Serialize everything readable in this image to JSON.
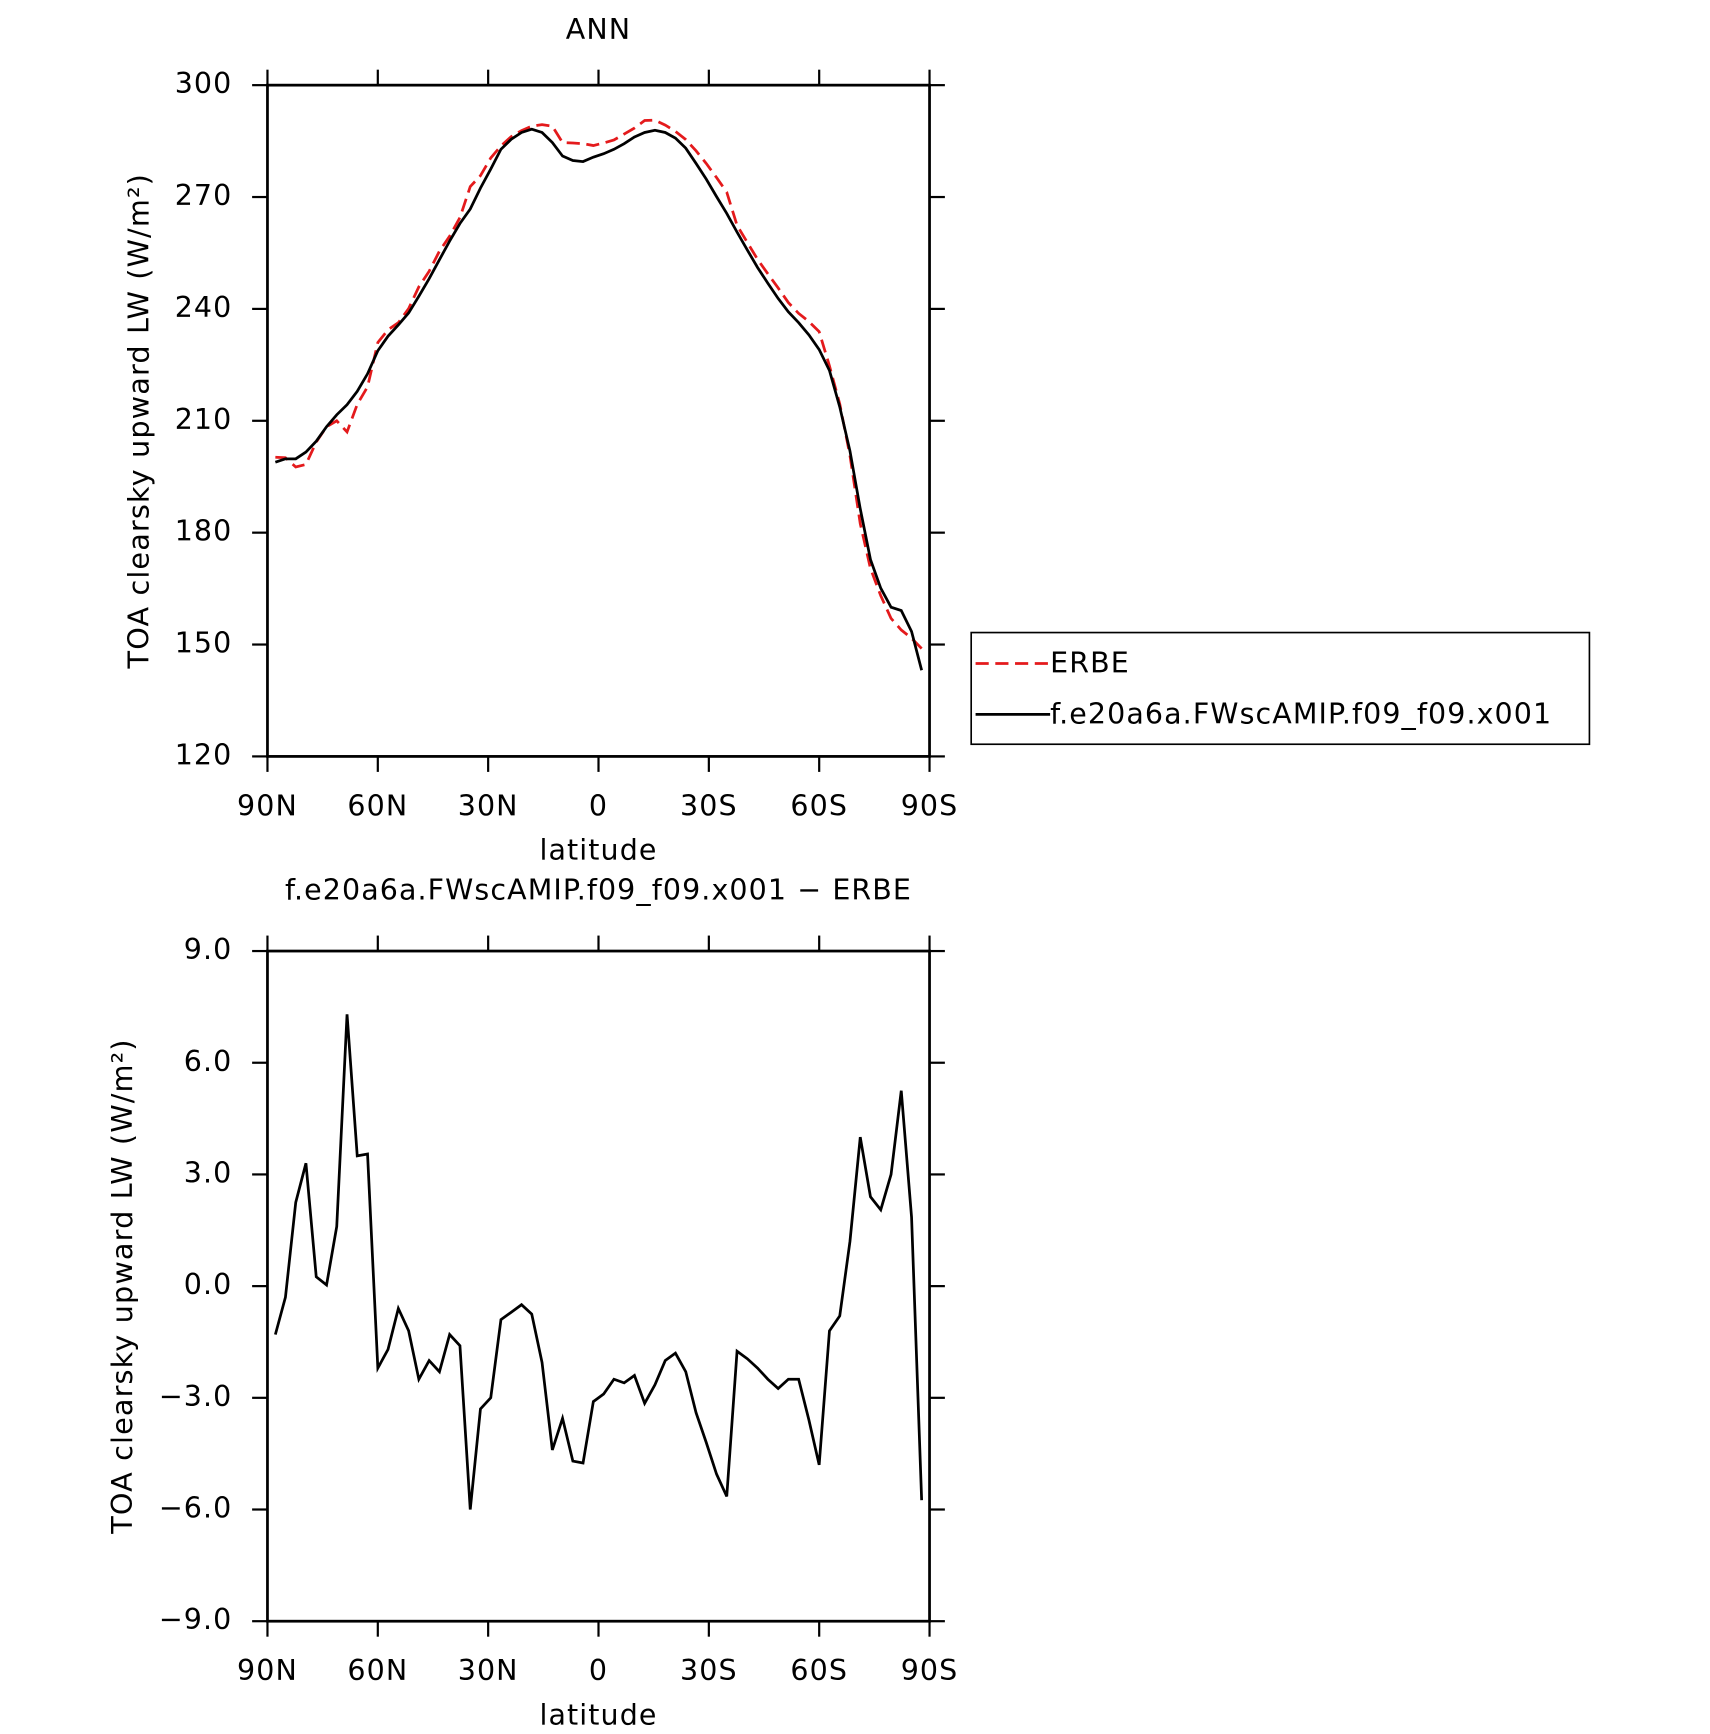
{
  "chart_data": [
    {
      "type": "line",
      "title": "ANN",
      "x_label": "latitude",
      "y_label": "TOA clearsky upward LW (W/m²)",
      "x": [
        87.86,
        85.1,
        82.31,
        79.53,
        76.74,
        73.95,
        71.16,
        68.37,
        65.58,
        62.79,
        60.0,
        57.21,
        54.42,
        51.63,
        48.84,
        46.04,
        43.25,
        40.46,
        37.67,
        34.88,
        32.09,
        29.3,
        26.51,
        23.72,
        20.93,
        18.14,
        15.35,
        12.56,
        9.77,
        6.98,
        4.19,
        1.4,
        -1.4,
        -4.19,
        -6.98,
        -9.77,
        -12.56,
        -15.35,
        -18.14,
        -20.93,
        -23.72,
        -26.51,
        -29.3,
        -32.09,
        -34.88,
        -37.67,
        -40.46,
        -43.25,
        -46.04,
        -48.84,
        -51.63,
        -54.42,
        -57.21,
        -60.0,
        -62.79,
        -65.58,
        -68.37,
        -71.16,
        -73.95,
        -76.74,
        -79.53,
        -82.31,
        -85.1,
        -87.86
      ],
      "series": [
        {
          "name": "ERBE",
          "color": "#e41a1c",
          "linestyle": "dashed",
          "values": [
            200.2,
            200.1,
            197.6,
            198.3,
            204.3,
            208.4,
            210.0,
            207.0,
            214.4,
            219.1,
            231.0,
            234.4,
            236.3,
            240.1,
            245.9,
            250.1,
            255.5,
            259.5,
            264.5,
            272.8,
            275.7,
            280.5,
            283.7,
            286.2,
            287.8,
            289.0,
            289.4,
            289.0,
            284.6,
            284.5,
            284.3,
            283.8,
            284.5,
            285.3,
            286.9,
            288.5,
            290.5,
            290.6,
            289.3,
            287.6,
            285.4,
            282.4,
            279.0,
            275.2,
            271.3,
            262.4,
            257.8,
            253.3,
            249.4,
            245.6,
            241.7,
            238.8,
            236.6,
            233.9,
            224.7,
            214.5,
            200.7,
            182.4,
            170.4,
            163.1,
            157.0,
            153.9,
            151.7,
            148.9
          ]
        },
        {
          "name": "f.e20a6a.FWscAMIP.f09_f09.x001",
          "color": "#000000",
          "linestyle": "solid",
          "values": [
            198.9,
            199.8,
            199.8,
            201.6,
            204.5,
            208.4,
            211.6,
            214.3,
            217.9,
            222.6,
            228.8,
            232.7,
            235.7,
            238.9,
            243.4,
            248.1,
            253.2,
            258.2,
            262.9,
            266.8,
            272.4,
            277.5,
            282.8,
            285.5,
            287.3,
            288.2,
            287.3,
            284.6,
            281.0,
            279.8,
            279.5,
            280.7,
            281.6,
            282.8,
            284.3,
            286.1,
            287.3,
            287.9,
            287.3,
            285.8,
            283.1,
            279.0,
            274.8,
            270.1,
            265.6,
            260.6,
            255.8,
            251.1,
            246.9,
            242.8,
            239.2,
            236.3,
            233.0,
            229.1,
            223.5,
            213.7,
            201.9,
            186.4,
            172.8,
            165.1,
            160.0,
            159.1,
            153.5,
            143.1
          ]
        }
      ],
      "xlim": [
        90,
        -90
      ],
      "xticks": [
        {
          "value": 90,
          "label": "90N"
        },
        {
          "value": 60,
          "label": "60N"
        },
        {
          "value": 30,
          "label": "30N"
        },
        0,
        {
          "value": -30,
          "label": "30S"
        },
        {
          "value": -60,
          "label": "60S"
        },
        {
          "value": -90,
          "label": "90S"
        }
      ],
      "ylim": [
        120,
        300
      ],
      "yticks": [
        120,
        150,
        180,
        210,
        240,
        270,
        300
      ],
      "grid": false,
      "legend": "right"
    },
    {
      "type": "line",
      "title": "f.e20a6a.FWscAMIP.f09_f09.x001 − ERBE",
      "x_label": "latitude",
      "y_label": "TOA clearsky upward LW (W/m²)",
      "x": [
        87.86,
        85.1,
        82.31,
        79.53,
        76.74,
        73.95,
        71.16,
        68.37,
        65.58,
        62.79,
        60.0,
        57.21,
        54.42,
        51.63,
        48.84,
        46.04,
        43.25,
        40.46,
        37.67,
        34.88,
        32.09,
        29.3,
        26.51,
        23.72,
        20.93,
        18.14,
        15.35,
        12.56,
        9.77,
        6.98,
        4.19,
        1.4,
        -1.4,
        -4.19,
        -6.98,
        -9.77,
        -12.56,
        -15.35,
        -18.14,
        -20.93,
        -23.72,
        -26.51,
        -29.3,
        -32.09,
        -34.88,
        -37.67,
        -40.46,
        -43.25,
        -46.04,
        -48.84,
        -51.63,
        -54.42,
        -57.21,
        -60.0,
        -62.79,
        -65.58,
        -68.37,
        -71.16,
        -73.95,
        -76.74,
        -79.53,
        -82.31,
        -85.1,
        -87.86
      ],
      "values": [
        -1.3,
        -0.3,
        2.25,
        3.3,
        0.25,
        0.03,
        1.6,
        7.3,
        3.5,
        3.55,
        -2.2,
        -1.7,
        -0.6,
        -1.2,
        -2.5,
        -2.0,
        -2.3,
        -1.3,
        -1.6,
        -6.0,
        -3.3,
        -3.0,
        -0.9,
        -0.7,
        -0.5,
        -0.75,
        -2.05,
        -4.4,
        -3.55,
        -4.7,
        -4.75,
        -3.1,
        -2.9,
        -2.5,
        -2.6,
        -2.4,
        -3.15,
        -2.65,
        -2.0,
        -1.8,
        -2.3,
        -3.4,
        -4.2,
        -5.05,
        -5.65,
        -1.75,
        -1.95,
        -2.2,
        -2.5,
        -2.75,
        -2.5,
        -2.5,
        -3.6,
        -4.8,
        -1.2,
        -0.8,
        1.2,
        4.0,
        2.4,
        2.05,
        3.0,
        5.25,
        1.85,
        -5.75
      ],
      "color": "#000000",
      "xlim": [
        90,
        -90
      ],
      "xticks": [
        {
          "value": 90,
          "label": "90N"
        },
        {
          "value": 60,
          "label": "60N"
        },
        {
          "value": 30,
          "label": "30N"
        },
        0,
        {
          "value": -30,
          "label": "30S"
        },
        {
          "value": -60,
          "label": "60S"
        },
        {
          "value": -90,
          "label": "90S"
        }
      ],
      "ylim": [
        -9,
        9
      ],
      "yticks": [
        {
          "value": -9,
          "label": "−9.0"
        },
        {
          "value": -6,
          "label": "−6.0"
        },
        {
          "value": -3,
          "label": "−3.0"
        },
        {
          "value": 0,
          "label": "0.0"
        },
        {
          "value": 3,
          "label": "3.0"
        },
        {
          "value": 6,
          "label": "6.0"
        },
        {
          "value": 9,
          "label": "9.0"
        }
      ],
      "grid": false
    }
  ]
}
